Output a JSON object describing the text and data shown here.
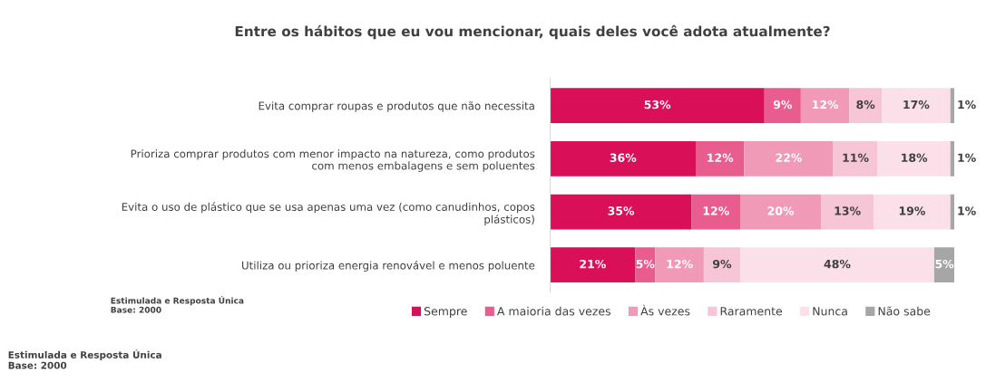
{
  "chart_data": {
    "type": "bar",
    "orientation": "horizontal",
    "stacked": true,
    "title": "Entre os hábitos que eu vou mencionar, quais deles você adota atualmente?",
    "categories": [
      "Evita comprar roupas e produtos que não necessita",
      "Prioriza comprar produtos com menor impacto na natureza, como produtos\ncom menos embalagens e sem poluentes",
      "Evita o uso de plástico que se usa apenas uma vez (como canudinhos, copos\nplásticos)",
      "Utiliza ou prioriza energia renovável e menos poluente"
    ],
    "series": [
      {
        "name": "Sempre",
        "color": "#d90f57",
        "values": [
          53,
          36,
          35,
          21
        ],
        "value_labels": [
          "53%",
          "36%",
          "35%",
          "21%"
        ]
      },
      {
        "name": "A maioria das vezes",
        "color": "#e85d8e",
        "values": [
          9,
          12,
          12,
          5
        ],
        "value_labels": [
          "9%",
          "12%",
          "12%",
          "5%"
        ]
      },
      {
        "name": "Às vezes",
        "color": "#f09ab8",
        "values": [
          12,
          22,
          20,
          12
        ],
        "value_labels": [
          "12%",
          "22%",
          "20%",
          "12%"
        ]
      },
      {
        "name": "Raramente",
        "color": "#f7c6d6",
        "values": [
          8,
          11,
          13,
          9
        ],
        "value_labels": [
          "8%",
          "11%",
          "13%",
          "9%"
        ]
      },
      {
        "name": "Nunca",
        "color": "#fbe0ea",
        "values": [
          17,
          18,
          19,
          48
        ],
        "value_labels": [
          "17%",
          "18%",
          "19%",
          "48%"
        ]
      },
      {
        "name": "Não sabe",
        "color": "#a6a6a6",
        "values": [
          1,
          1,
          1,
          5
        ],
        "value_labels": [
          "1%",
          "1%",
          "1%",
          "5%"
        ]
      }
    ],
    "legend": "bottom",
    "annotations": [
      "Estimulada e Resposta Única\nBase: 2000",
      "Estimulada e Resposta Única\nBase: 2000"
    ]
  }
}
